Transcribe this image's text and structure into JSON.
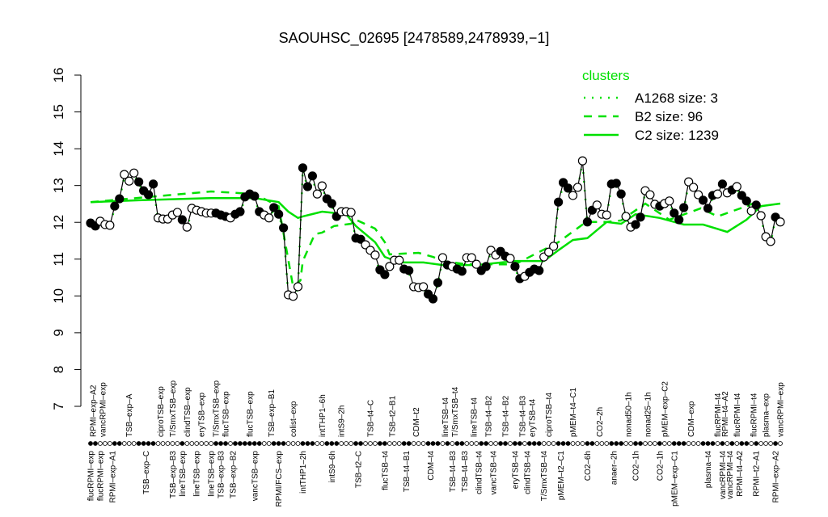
{
  "chart_data": {
    "type": "line",
    "title": "SAOUHSC_02695 [2478589,2478939,−1]",
    "xlabel": "",
    "ylabel": "",
    "ylim": [
      7,
      16
    ],
    "yticks": [
      7,
      8,
      9,
      10,
      11,
      12,
      13,
      14,
      15,
      16
    ],
    "grid": false,
    "legend": {
      "title": "clusters",
      "placement": "top-right",
      "color": "#00e000",
      "entries": [
        {
          "label": "A1268 size: 3",
          "style": "dotted"
        },
        {
          "label": "B2 size: 96",
          "style": "dashed"
        },
        {
          "label": "C2 size: 1239",
          "style": "solid"
        }
      ]
    },
    "points_note_fill": "filled or open marker",
    "points": [
      [
        11.98,
        1
      ],
      [
        11.9,
        1
      ],
      [
        12.03,
        0
      ],
      [
        11.94,
        0
      ],
      [
        11.92,
        0
      ],
      [
        12.44,
        1
      ],
      [
        12.64,
        1
      ],
      [
        13.3,
        0
      ],
      [
        13.12,
        0
      ],
      [
        13.34,
        0
      ],
      [
        13.1,
        1
      ],
      [
        12.86,
        1
      ],
      [
        12.75,
        1
      ],
      [
        13.04,
        1
      ],
      [
        12.12,
        0
      ],
      [
        12.09,
        0
      ],
      [
        12.09,
        0
      ],
      [
        12.2,
        0
      ],
      [
        12.27,
        0
      ],
      [
        12.07,
        1
      ],
      [
        11.87,
        0
      ],
      [
        12.38,
        0
      ],
      [
        12.33,
        0
      ],
      [
        12.29,
        0
      ],
      [
        12.25,
        0
      ],
      [
        12.25,
        0
      ],
      [
        12.25,
        1
      ],
      [
        12.2,
        1
      ],
      [
        12.16,
        1
      ],
      [
        12.12,
        0
      ],
      [
        12.22,
        1
      ],
      [
        12.29,
        1
      ],
      [
        12.69,
        1
      ],
      [
        12.77,
        1
      ],
      [
        12.71,
        1
      ],
      [
        12.29,
        1
      ],
      [
        12.2,
        0
      ],
      [
        12.12,
        0
      ],
      [
        12.4,
        1
      ],
      [
        12.22,
        1
      ],
      [
        11.85,
        1
      ],
      [
        10.03,
        0
      ],
      [
        9.99,
        0
      ],
      [
        10.25,
        0
      ],
      [
        13.48,
        1
      ],
      [
        12.97,
        1
      ],
      [
        13.26,
        1
      ],
      [
        12.77,
        0
      ],
      [
        12.99,
        0
      ],
      [
        12.64,
        1
      ],
      [
        12.51,
        1
      ],
      [
        12.16,
        1
      ],
      [
        12.29,
        0
      ],
      [
        12.29,
        0
      ],
      [
        12.27,
        0
      ],
      [
        11.57,
        1
      ],
      [
        11.54,
        1
      ],
      [
        11.39,
        0
      ],
      [
        11.24,
        0
      ],
      [
        11.11,
        0
      ],
      [
        10.71,
        1
      ],
      [
        10.58,
        1
      ],
      [
        10.8,
        0
      ],
      [
        10.97,
        0
      ],
      [
        10.97,
        0
      ],
      [
        10.73,
        1
      ],
      [
        10.69,
        1
      ],
      [
        10.25,
        0
      ],
      [
        10.23,
        0
      ],
      [
        10.25,
        0
      ],
      [
        10.05,
        1
      ],
      [
        9.92,
        1
      ],
      [
        10.36,
        1
      ],
      [
        11.04,
        0
      ],
      [
        10.84,
        1
      ],
      [
        10.8,
        0
      ],
      [
        10.73,
        1
      ],
      [
        10.67,
        1
      ],
      [
        11.04,
        0
      ],
      [
        11.04,
        0
      ],
      [
        10.86,
        0
      ],
      [
        10.69,
        1
      ],
      [
        10.8,
        1
      ],
      [
        11.24,
        0
      ],
      [
        11.11,
        0
      ],
      [
        11.21,
        1
      ],
      [
        11.08,
        1
      ],
      [
        11.02,
        0
      ],
      [
        10.8,
        1
      ],
      [
        10.47,
        1
      ],
      [
        10.53,
        0
      ],
      [
        10.64,
        1
      ],
      [
        10.73,
        1
      ],
      [
        10.69,
        1
      ],
      [
        11.06,
        0
      ],
      [
        11.19,
        0
      ],
      [
        11.35,
        0
      ],
      [
        12.55,
        1
      ],
      [
        13.08,
        1
      ],
      [
        12.93,
        1
      ],
      [
        12.73,
        0
      ],
      [
        12.95,
        0
      ],
      [
        13.67,
        0
      ],
      [
        12.01,
        1
      ],
      [
        12.33,
        1
      ],
      [
        12.47,
        0
      ],
      [
        12.22,
        0
      ],
      [
        12.2,
        0
      ],
      [
        13.04,
        1
      ],
      [
        13.06,
        1
      ],
      [
        12.77,
        1
      ],
      [
        12.16,
        0
      ],
      [
        11.87,
        0
      ],
      [
        11.94,
        1
      ],
      [
        12.14,
        1
      ],
      [
        12.86,
        0
      ],
      [
        12.75,
        0
      ],
      [
        12.49,
        0
      ],
      [
        12.44,
        1
      ],
      [
        12.51,
        0
      ],
      [
        12.58,
        0
      ],
      [
        12.25,
        1
      ],
      [
        12.07,
        1
      ],
      [
        12.4,
        1
      ],
      [
        13.1,
        0
      ],
      [
        12.95,
        0
      ],
      [
        12.75,
        0
      ],
      [
        12.6,
        1
      ],
      [
        12.38,
        1
      ],
      [
        12.73,
        1
      ],
      [
        12.77,
        0
      ],
      [
        13.04,
        1
      ],
      [
        12.8,
        0
      ],
      [
        12.88,
        1
      ],
      [
        12.97,
        0
      ],
      [
        12.73,
        1
      ],
      [
        12.58,
        1
      ],
      [
        12.31,
        0
      ],
      [
        12.47,
        1
      ],
      [
        12.18,
        0
      ],
      [
        11.61,
        0
      ],
      [
        11.48,
        0
      ],
      [
        12.14,
        1
      ],
      [
        12.01,
        0
      ]
    ],
    "series": [
      {
        "name": "C2 size: 1239",
        "style": "solid",
        "xy": [
          [
            1,
            12.55
          ],
          [
            11,
            12.6
          ],
          [
            26,
            12.66
          ],
          [
            35,
            12.66
          ],
          [
            40,
            12.55
          ],
          [
            42,
            12.29
          ],
          [
            44,
            12.12
          ],
          [
            45,
            12.16
          ],
          [
            49,
            12.29
          ],
          [
            54,
            12.22
          ],
          [
            56,
            11.9
          ],
          [
            60,
            11.46
          ],
          [
            62,
            11.06
          ],
          [
            65,
            10.91
          ],
          [
            70,
            10.91
          ],
          [
            74,
            10.84
          ],
          [
            81,
            10.84
          ],
          [
            89,
            10.95
          ],
          [
            95,
            10.95
          ],
          [
            98,
            11.24
          ],
          [
            101,
            11.52
          ],
          [
            104,
            11.57
          ],
          [
            105,
            11.68
          ],
          [
            108,
            12.01
          ],
          [
            111,
            11.96
          ],
          [
            114,
            12.22
          ],
          [
            119,
            12.12
          ],
          [
            124,
            11.94
          ],
          [
            128,
            11.94
          ],
          [
            133,
            11.74
          ],
          [
            137,
            12.07
          ],
          [
            140,
            12.44
          ],
          [
            144,
            12.51
          ]
        ]
      },
      {
        "name": "B2 size: 96",
        "style": "dashed",
        "xy": [
          [
            1,
            12.55
          ],
          [
            26,
            12.84
          ],
          [
            35,
            12.77
          ],
          [
            40,
            12.44
          ],
          [
            43,
            10.25
          ],
          [
            44.5,
            10.42
          ],
          [
            45,
            10.95
          ],
          [
            47.5,
            11.68
          ],
          [
            49,
            11.72
          ],
          [
            51.5,
            11.9
          ],
          [
            55,
            11.96
          ],
          [
            56,
            12.07
          ],
          [
            60,
            11.83
          ],
          [
            62,
            11.46
          ],
          [
            63,
            11.13
          ],
          [
            69,
            11.17
          ],
          [
            72,
            11.06
          ],
          [
            74,
            10.95
          ],
          [
            79,
            10.86
          ],
          [
            89,
            10.86
          ],
          [
            98,
            11.46
          ],
          [
            103,
            11.94
          ],
          [
            104,
            12.01
          ],
          [
            108,
            12.01
          ],
          [
            111,
            12.05
          ],
          [
            116,
            12.51
          ],
          [
            121,
            12.07
          ],
          [
            127.5,
            12.38
          ],
          [
            131,
            12.16
          ],
          [
            137,
            12.44
          ],
          [
            139,
            12.55
          ]
        ]
      }
    ],
    "x_labels_top": [
      [
        "RPMI–exp–A2",
        1.5
      ],
      [
        "vancRPMI–exp",
        3.5
      ],
      [
        "TSB–exp–A",
        9
      ],
      [
        "ciproTSB–exp",
        15.5
      ],
      [
        "T/SmxTSB–exp",
        18
      ],
      [
        "clindTSB–exp",
        21
      ],
      [
        "eryTSB–exp",
        24
      ],
      [
        "T/SmxTSB–exp",
        27
      ],
      [
        "flucTSB–exp",
        29
      ],
      [
        "flucTSB–exp",
        34
      ],
      [
        "TSB–exp–B1",
        38.5
      ],
      [
        "colist–exp",
        43
      ],
      [
        "intTHP1–6h",
        49
      ],
      [
        "intS9–2h",
        53
      ],
      [
        "TSB–t4–C",
        59
      ],
      [
        "TSB–t2–B1",
        63.5
      ],
      [
        "CDM–t2",
        68.5
      ],
      [
        "lineTSB–t4",
        74.5
      ],
      [
        "T/SmxTSB–t4",
        76.5
      ],
      [
        "lineTSB–t4",
        80.5
      ],
      [
        "TSB–t4–B2",
        83.5
      ],
      [
        "TSB–t4–B2",
        87
      ],
      [
        "TSB–t4–B3",
        90.5
      ],
      [
        "eryTSB–t4",
        92.5
      ],
      [
        "ciproTSB–t4",
        96
      ],
      [
        "pMEM–t4–C1",
        101
      ],
      [
        "CO2–2h",
        106.5
      ],
      [
        "nonad50–1h",
        112.5
      ],
      [
        "nonad25–1h",
        116.5
      ],
      [
        "pMEM–exp–C2",
        120
      ],
      [
        "CDM–exp",
        125.5
      ],
      [
        "flucRPMI–t4",
        131
      ],
      [
        "RPMI–t4–A2",
        132.5
      ],
      [
        "flucRPMI–t4",
        135
      ],
      [
        "flucRPMI–t4",
        138.5
      ],
      [
        "plasma–exp",
        141
      ],
      [
        "vancRPMI–exp",
        144
      ]
    ],
    "x_labels_bottom": [
      [
        "flucRPMI–exp",
        1
      ],
      [
        "flucRPMI–exp",
        3
      ],
      [
        "RPMI–exp–A1",
        5.5
      ],
      [
        "TSB–exp–C",
        12.5
      ],
      [
        "TSB–exp–B3",
        18
      ],
      [
        "lineTSB–exp",
        20
      ],
      [
        "lineTSB–exp",
        23
      ],
      [
        "lineTSB–exp",
        26
      ],
      [
        "TSB–exp–B3",
        28
      ],
      [
        "TSB–exp–B2",
        30.5
      ],
      [
        "vancTSB–exp",
        35
      ],
      [
        "RPMI/FCS–exp",
        40
      ],
      [
        "intTHP1–2h",
        45
      ],
      [
        "intS9–6h",
        51
      ],
      [
        "TSB–t2–C",
        56.5
      ],
      [
        "flucTSB–t4",
        62
      ],
      [
        "TSB–t4–B1",
        66.5
      ],
      [
        "CDM–t4",
        71.5
      ],
      [
        "TSB–t4–B3",
        76
      ],
      [
        "TSB–t4–B3",
        78.5
      ],
      [
        "clindTSB–t4",
        81.5
      ],
      [
        "vancTSB–t4",
        84.5
      ],
      [
        "eryTSB–t4",
        89
      ],
      [
        "clindTSB–t4",
        91.5
      ],
      [
        "T/SmxTSB–t4",
        95
      ],
      [
        "pMEM–t2–C1",
        98.5
      ],
      [
        "CO2–6h",
        104
      ],
      [
        "anaer–2h",
        109.5
      ],
      [
        "CO2–1h",
        114
      ],
      [
        "CO2–1h",
        119
      ],
      [
        "pMEM–exp–C1",
        122
      ],
      [
        "plasma–t4",
        129
      ],
      [
        "vancRPMI–t4",
        132
      ],
      [
        "vancRPMI–t4",
        133.5
      ],
      [
        "RPMI–t4–A2",
        135.5
      ],
      [
        "RPMI–t2–A1",
        139
      ],
      [
        "RPMI–exp–A2",
        143
      ]
    ]
  }
}
